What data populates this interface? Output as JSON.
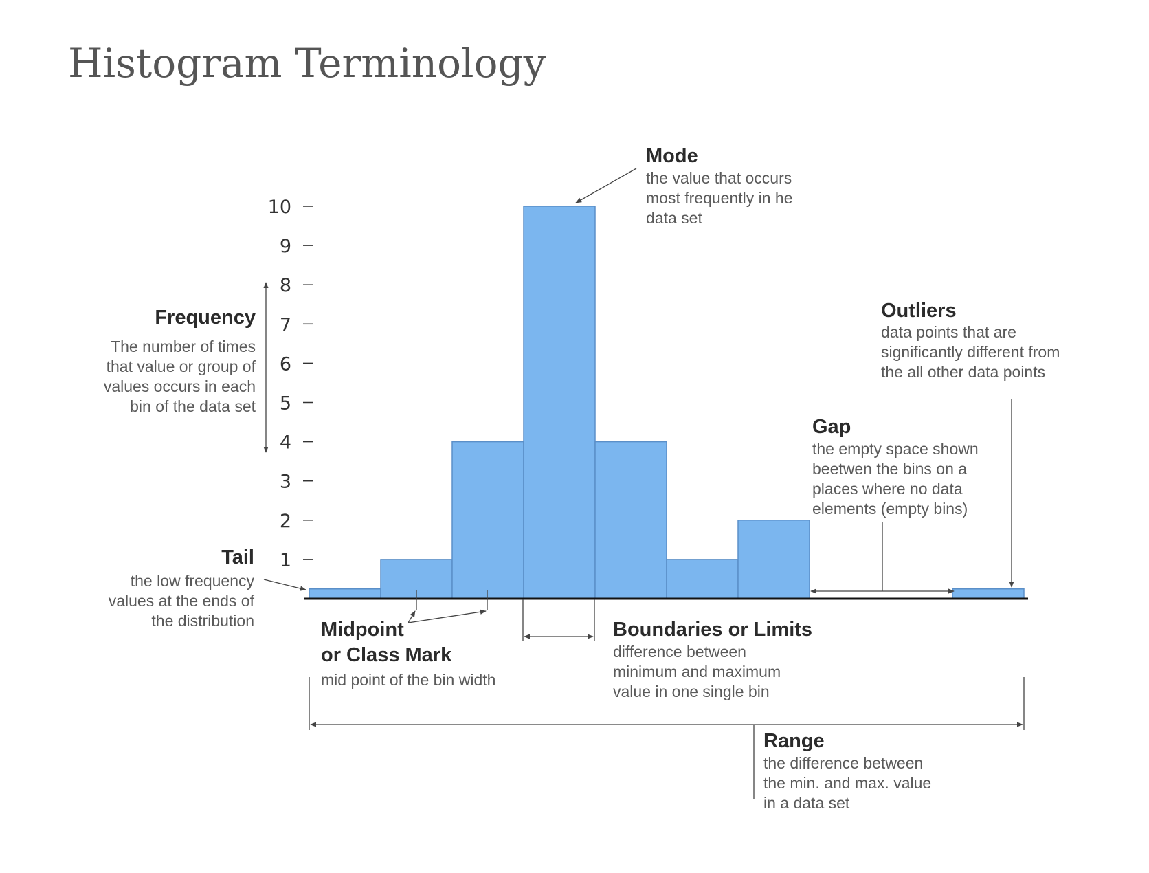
{
  "title": "Histogram Terminology",
  "chart_data": {
    "type": "bar",
    "categories": [
      "",
      "",
      "",
      "",
      "",
      "",
      "",
      "",
      "",
      ""
    ],
    "values": [
      0.25,
      1,
      4,
      10,
      4,
      1,
      2,
      0,
      0,
      0.25
    ],
    "ylim": [
      0,
      10
    ],
    "yticks": [
      "1",
      "2",
      "3",
      "4",
      "5",
      "6",
      "7",
      "8",
      "9",
      "10"
    ],
    "grid": false,
    "bar_color": "#7bb6ef",
    "bar_edge_color": "#5b8fc8",
    "annotations": {
      "mode": {
        "title": "Mode",
        "lines": [
          "the value that occurs",
          "most frequently in he",
          "data set"
        ]
      },
      "frequency": {
        "title": "Frequency",
        "lines": [
          "The number of times",
          "that value or group of",
          "values occurs in each",
          "bin of the data set"
        ]
      },
      "outliers": {
        "title": "Outliers",
        "lines": [
          "data points that are",
          "significantly different from",
          "the all other data points"
        ]
      },
      "gap": {
        "title": "Gap",
        "lines": [
          "the empty space shown",
          "beetwen the bins on a",
          "places where no data",
          "elements (empty bins)"
        ]
      },
      "tail": {
        "title": "Tail",
        "lines": [
          "the low frequency",
          "values at the ends of",
          "the distribution"
        ]
      },
      "midpoint": {
        "title_lines": [
          "Midpoint",
          "or Class Mark"
        ],
        "lines": [
          "mid point of the bin width"
        ]
      },
      "boundaries": {
        "title": "Boundaries or Limits",
        "lines": [
          "difference between",
          "minimum and maximum",
          "value in one single bin"
        ]
      },
      "range": {
        "title": "Range",
        "lines": [
          "the difference between",
          "the min. and max. value",
          "in a data set"
        ]
      }
    }
  }
}
